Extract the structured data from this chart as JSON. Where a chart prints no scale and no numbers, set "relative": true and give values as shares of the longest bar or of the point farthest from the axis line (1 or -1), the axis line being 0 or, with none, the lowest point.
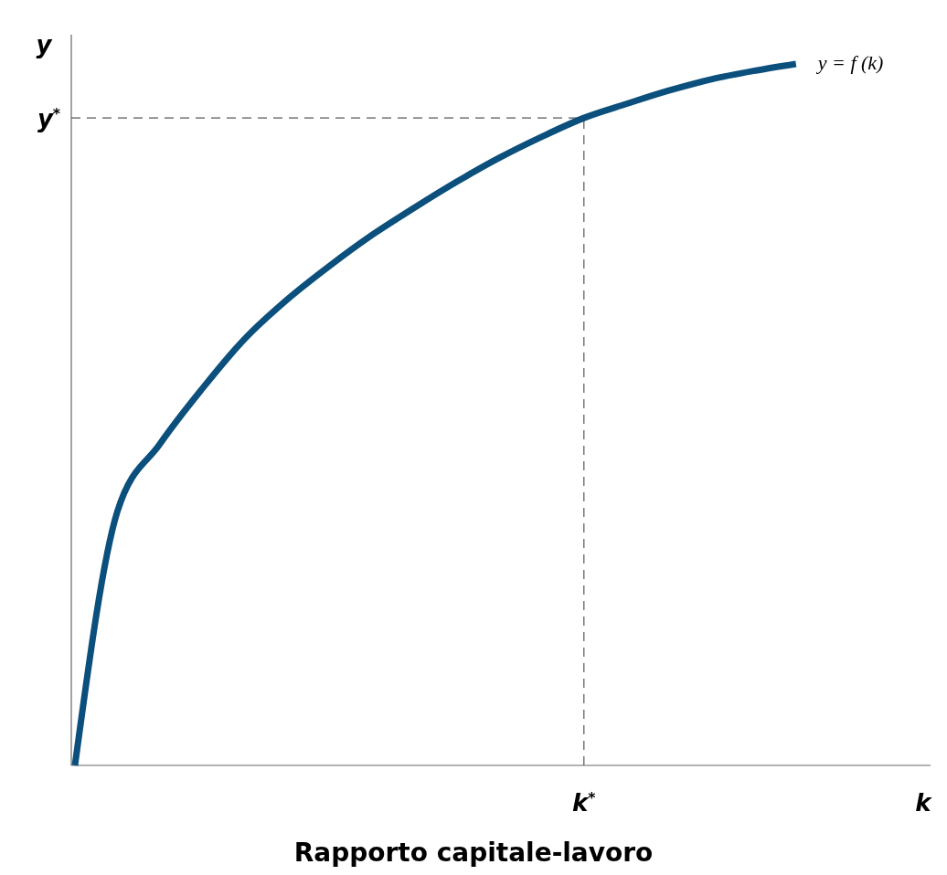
{
  "chart_data": {
    "type": "line",
    "relative": true,
    "xlabel": "Rapporto capitale-lavoro",
    "ylabel": "y",
    "categories": [
      null,
      null,
      null,
      null,
      null,
      null,
      null,
      null,
      null,
      null,
      null,
      null,
      "k$^{*}$",
      null,
      null,
      null,
      null,
      null,
      null,
      null,
      "k"
    ],
    "series": [
      {
        "name": "y = f (k)",
        "color": "#0b4f7c",
        "values": [
          0,
          0.362,
          0.458,
          0.537,
          0.608,
          0.664,
          0.712,
          0.756,
          0.795,
          0.832,
          0.866,
          0.896,
          0.923,
          0.943,
          0.962,
          0.978,
          0.99,
          1,
          null,
          null,
          null
        ]
      }
    ],
    "ref_lines": [
      {
        "axis": "x",
        "value": "k$^{*}$",
        "line_style": "dashed",
        "color": "#555555"
      },
      {
        "axis": "y",
        "value": 0.923,
        "label": "y$^{*}$",
        "line_style": "dashed",
        "color": "#555555"
      }
    ],
    "grid": false,
    "legend": false,
    "marker": "none",
    "line_style": "solid"
  }
}
